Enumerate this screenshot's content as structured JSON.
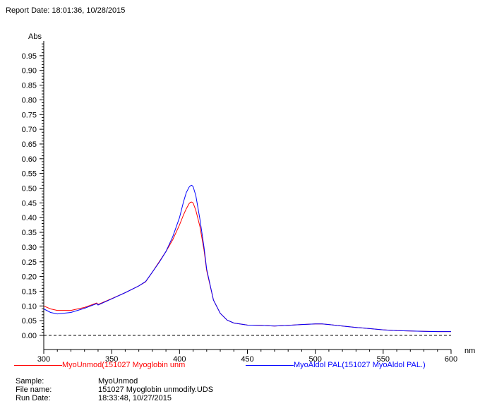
{
  "report_date": "Report Date: 18:01:36, 10/28/2015",
  "sample_info": {
    "sample_label": "Sample:",
    "sample_value": "MyoUnmod",
    "file_label": "File name:",
    "file_value": "151027 Myoglobin unmodify.UDS",
    "run_label": "Run Date:",
    "run_value": "18:33:48, 10/27/2015"
  },
  "chart_data": {
    "type": "line",
    "xlabel": "nm",
    "ylabel": "Abs",
    "xlim": [
      300,
      600
    ],
    "ylim": [
      0,
      1.0
    ],
    "x_ticks": [
      300,
      350,
      400,
      450,
      500,
      550,
      600
    ],
    "y_ticks": [
      "0.00",
      "0.05",
      "0.10",
      "0.15",
      "0.20",
      "0.25",
      "0.30",
      "0.35",
      "0.40",
      "0.45",
      "0.50",
      "0.55",
      "0.60",
      "0.65",
      "0.70",
      "0.75",
      "0.80",
      "0.85",
      "0.90",
      "0.95"
    ],
    "baseline": 0,
    "series": [
      {
        "name": "MyoUnmod(151027 Myoglobin unm",
        "color": "#ff0000",
        "x": [
          300,
          305,
          310,
          320,
          330,
          339,
          340,
          350,
          360,
          370,
          375,
          380,
          385,
          390,
          395,
          400,
          403,
          405,
          407,
          408,
          409,
          410,
          412,
          415,
          418,
          420,
          425,
          430,
          435,
          440,
          450,
          460,
          470,
          480,
          490,
          500,
          505,
          510,
          520,
          530,
          540,
          550,
          560,
          570,
          580,
          590,
          600
        ],
        "y": [
          0.1,
          0.09,
          0.085,
          0.085,
          0.095,
          0.11,
          0.105,
          0.125,
          0.145,
          0.168,
          0.182,
          0.215,
          0.25,
          0.285,
          0.325,
          0.375,
          0.41,
          0.43,
          0.447,
          0.452,
          0.453,
          0.45,
          0.425,
          0.37,
          0.29,
          0.22,
          0.12,
          0.075,
          0.052,
          0.042,
          0.035,
          0.034,
          0.032,
          0.034,
          0.037,
          0.039,
          0.039,
          0.037,
          0.032,
          0.027,
          0.023,
          0.019,
          0.016,
          0.015,
          0.014,
          0.013,
          0.013
        ]
      },
      {
        "name": "MyoAldol PAL(151027 MyoAldol PAL.)",
        "color": "#0000ff",
        "x": [
          300,
          305,
          310,
          320,
          330,
          339,
          340,
          350,
          360,
          370,
          375,
          380,
          385,
          390,
          395,
          400,
          403,
          405,
          407,
          408,
          409,
          410,
          412,
          415,
          418,
          420,
          425,
          430,
          435,
          440,
          450,
          460,
          470,
          480,
          490,
          500,
          505,
          510,
          520,
          530,
          540,
          550,
          560,
          570,
          580,
          590,
          600
        ],
        "y": [
          0.09,
          0.078,
          0.073,
          0.078,
          0.092,
          0.108,
          0.103,
          0.124,
          0.145,
          0.168,
          0.183,
          0.215,
          0.248,
          0.285,
          0.335,
          0.4,
          0.455,
          0.485,
          0.503,
          0.508,
          0.51,
          0.505,
          0.475,
          0.395,
          0.3,
          0.225,
          0.12,
          0.075,
          0.052,
          0.042,
          0.035,
          0.034,
          0.032,
          0.034,
          0.037,
          0.039,
          0.039,
          0.037,
          0.032,
          0.027,
          0.023,
          0.019,
          0.016,
          0.015,
          0.014,
          0.013,
          0.013
        ]
      }
    ]
  }
}
